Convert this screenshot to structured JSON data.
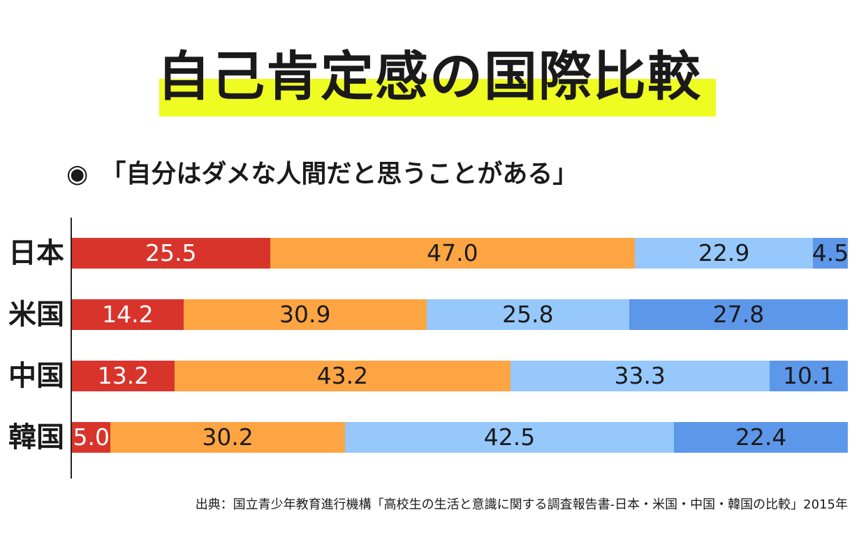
{
  "title": "自己肯定感の国際比較",
  "subtitle": {
    "bullet": "◉",
    "text": "「自分はダメな人間だと思うことがある」"
  },
  "source": "出典：国立青少年教育進行機構「高校生の生活と意識に関する調査報告書-日本・米国・中国・韓国の比較」2015年",
  "colors": {
    "highlight": "#eefc22",
    "segments": [
      "#d8342c",
      "#fda443",
      "#96c8fc",
      "#5d97ea"
    ],
    "label_text": [
      "#ffffff",
      "#1a1a1a",
      "#1a1a1a",
      "#1a1a1a"
    ]
  },
  "chart_data": {
    "type": "bar",
    "orientation": "horizontal",
    "stacked": true,
    "title": "自己肯定感の国際比較",
    "subtitle": "「自分はダメな人間だと思うことがある」",
    "categories": [
      "日本",
      "米国",
      "中国",
      "韓国"
    ],
    "series": [
      {
        "name": "",
        "values": [
          25.5,
          14.2,
          13.2,
          5.0
        ],
        "labels": [
          "25.5",
          "14.2",
          "13.2",
          "5.0"
        ]
      },
      {
        "name": "",
        "values": [
          47.0,
          30.9,
          43.2,
          30.2
        ],
        "labels": [
          "47.0",
          "30.9",
          "43.2",
          "30.2"
        ]
      },
      {
        "name": "",
        "values": [
          22.9,
          25.8,
          33.3,
          42.5
        ],
        "labels": [
          "22.9",
          "25.8",
          "33.3",
          "42.5"
        ]
      },
      {
        "name": "",
        "values": [
          4.5,
          27.8,
          10.1,
          22.4
        ],
        "labels": [
          "4.5",
          "27.8",
          "10.1",
          "22.4"
        ]
      }
    ],
    "xlim": [
      0,
      100
    ],
    "grid": false,
    "legend": "none"
  }
}
